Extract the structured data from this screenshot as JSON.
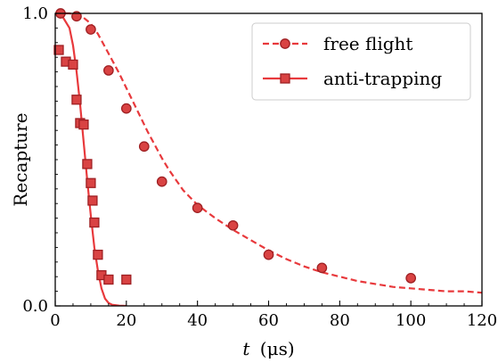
{
  "chart_data": {
    "type": "scatter",
    "xlabel": "t (μs)",
    "xlabel_var": "t",
    "xlabel_unit": "(μs)",
    "ylabel": "Recapture",
    "xlim": [
      0,
      120
    ],
    "ylim": [
      0,
      1.0
    ],
    "xticks": [
      0,
      20,
      40,
      60,
      80,
      100,
      120
    ],
    "xtick_labels": [
      "0",
      "20",
      "40",
      "60",
      "80",
      "100",
      "120"
    ],
    "yticks": [
      0.0,
      1.0
    ],
    "ytick_labels": [
      "0.0",
      "1.0"
    ],
    "grid": false,
    "legend_position": "top-right",
    "color": "#e8393c",
    "marker_fill": "#d94343",
    "marker_edge": "#9e1f22",
    "series": [
      {
        "name": "free flight",
        "marker": "circle",
        "line_style": "dashed",
        "points": [
          {
            "x": 1.5,
            "y": 1.0
          },
          {
            "x": 6,
            "y": 0.99
          },
          {
            "x": 10,
            "y": 0.945
          },
          {
            "x": 15,
            "y": 0.805
          },
          {
            "x": 20,
            "y": 0.675
          },
          {
            "x": 25,
            "y": 0.545
          },
          {
            "x": 30,
            "y": 0.425
          },
          {
            "x": 40,
            "y": 0.335
          },
          {
            "x": 50,
            "y": 0.275
          },
          {
            "x": 60,
            "y": 0.175
          },
          {
            "x": 75,
            "y": 0.13
          },
          {
            "x": 100,
            "y": 0.095
          }
        ],
        "fit": {
          "x": [
            0,
            2,
            4,
            6,
            8,
            10,
            12,
            14,
            16,
            18,
            20,
            22,
            24,
            26,
            28,
            30,
            32,
            34,
            36,
            38,
            40,
            45,
            50,
            55,
            60,
            65,
            70,
            75,
            80,
            85,
            90,
            95,
            100,
            105,
            110,
            115,
            120
          ],
          "y": [
            1.0,
            1.0,
            1.0,
            0.995,
            0.985,
            0.965,
            0.93,
            0.885,
            0.84,
            0.795,
            0.745,
            0.695,
            0.645,
            0.595,
            0.55,
            0.505,
            0.465,
            0.43,
            0.395,
            0.37,
            0.345,
            0.3,
            0.26,
            0.225,
            0.19,
            0.16,
            0.135,
            0.115,
            0.1,
            0.085,
            0.075,
            0.065,
            0.06,
            0.055,
            0.05,
            0.05,
            0.045
          ]
        }
      },
      {
        "name": "anti-trapping",
        "marker": "square",
        "line_style": "solid",
        "points": [
          {
            "x": 1,
            "y": 0.875
          },
          {
            "x": 3,
            "y": 0.835
          },
          {
            "x": 5,
            "y": 0.825
          },
          {
            "x": 6,
            "y": 0.705
          },
          {
            "x": 7,
            "y": 0.625
          },
          {
            "x": 8,
            "y": 0.62
          },
          {
            "x": 9,
            "y": 0.485
          },
          {
            "x": 10,
            "y": 0.42
          },
          {
            "x": 10.5,
            "y": 0.36
          },
          {
            "x": 11,
            "y": 0.285
          },
          {
            "x": 12,
            "y": 0.175
          },
          {
            "x": 13,
            "y": 0.105
          },
          {
            "x": 15,
            "y": 0.09
          },
          {
            "x": 20,
            "y": 0.09
          }
        ],
        "fit": {
          "x": [
            0,
            2,
            4,
            5,
            6,
            7,
            8,
            9,
            10,
            11,
            12,
            13,
            14,
            15,
            16,
            18,
            20
          ],
          "y": [
            1.0,
            0.99,
            0.95,
            0.89,
            0.8,
            0.69,
            0.56,
            0.43,
            0.31,
            0.2,
            0.12,
            0.06,
            0.025,
            0.01,
            0.004,
            0.001,
            0.0
          ]
        }
      }
    ]
  }
}
